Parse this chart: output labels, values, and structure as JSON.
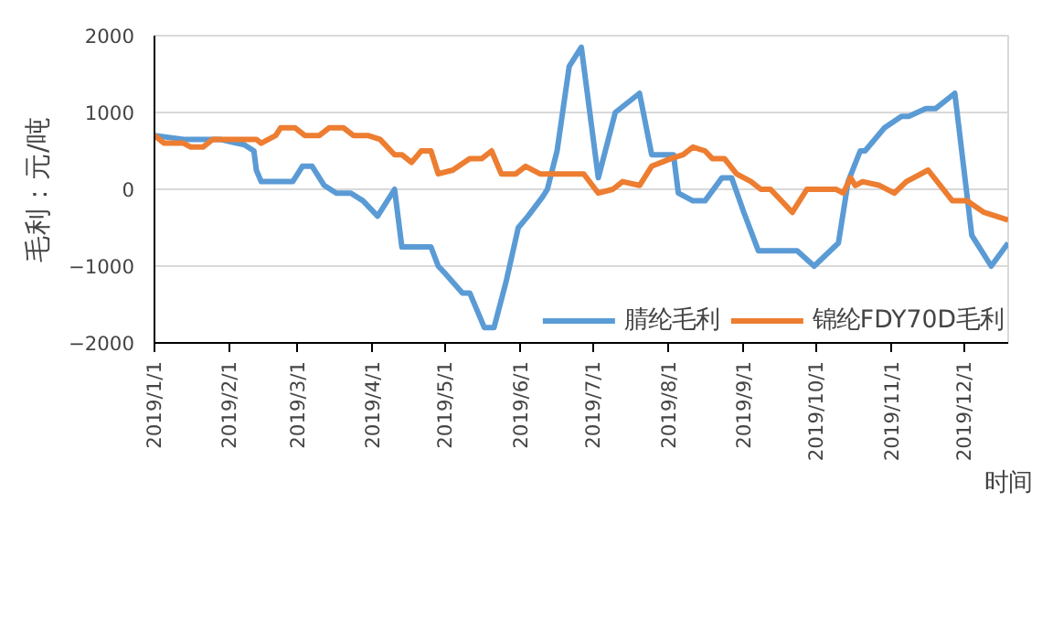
{
  "chart_data": {
    "type": "line",
    "ylabel": "毛利：元/吨",
    "xlabel": "时间",
    "xlim": [
      "2019-01-01",
      "2019-12-19"
    ],
    "xticks": [
      {
        "value": "2019-01-01",
        "label": "2019/1/1"
      },
      {
        "value": "2019-02-01",
        "label": "2019/2/1"
      },
      {
        "value": "2019-03-01",
        "label": "2019/3/1"
      },
      {
        "value": "2019-04-01",
        "label": "2019/4/1"
      },
      {
        "value": "2019-05-01",
        "label": "2019/5/1"
      },
      {
        "value": "2019-06-01",
        "label": "2019/6/1"
      },
      {
        "value": "2019-07-01",
        "label": "2019/7/1"
      },
      {
        "value": "2019-08-01",
        "label": "2019/8/1"
      },
      {
        "value": "2019-09-01",
        "label": "2019/9/1"
      },
      {
        "value": "2019-10-01",
        "label": "2019/10/1"
      },
      {
        "value": "2019-11-01",
        "label": "2019/11/1"
      },
      {
        "value": "2019-12-01",
        "label": "2019/12/1"
      }
    ],
    "ylim": [
      -2000,
      2000
    ],
    "yticks": [
      -2000,
      -1000,
      0,
      1000,
      2000
    ],
    "grid": "y",
    "legend": "bottom",
    "marker": "none",
    "line_style": "solid",
    "series": [
      {
        "name": "腈纶毛利",
        "color": "#5b9bd5",
        "x": [
          "2019-01-01",
          "2019-01-13",
          "2019-01-28",
          "2019-02-07",
          "2019-02-11",
          "2019-02-12",
          "2019-02-14",
          "2019-02-27",
          "2019-03-03",
          "2019-03-07",
          "2019-03-12",
          "2019-03-17",
          "2019-03-23",
          "2019-03-28",
          "2019-04-03",
          "2019-04-10",
          "2019-04-13",
          "2019-04-25",
          "2019-04-28",
          "2019-05-01",
          "2019-05-08",
          "2019-05-11",
          "2019-05-17",
          "2019-05-21",
          "2019-05-26",
          "2019-05-31",
          "2019-06-04",
          "2019-06-10",
          "2019-06-12",
          "2019-06-16",
          "2019-06-21",
          "2019-06-26",
          "2019-07-03",
          "2019-07-10",
          "2019-07-20",
          "2019-07-25",
          "2019-08-03",
          "2019-08-05",
          "2019-08-11",
          "2019-08-16",
          "2019-08-23",
          "2019-08-27",
          "2019-09-01",
          "2019-09-07",
          "2019-09-23",
          "2019-09-30",
          "2019-10-10",
          "2019-10-14",
          "2019-10-19",
          "2019-10-21",
          "2019-10-29",
          "2019-11-05",
          "2019-11-08",
          "2019-11-15",
          "2019-11-19",
          "2019-11-27",
          "2019-12-04",
          "2019-12-12",
          "2019-12-19"
        ],
        "values": [
          700,
          650,
          650,
          580,
          500,
          250,
          100,
          100,
          300,
          300,
          50,
          -50,
          -50,
          -150,
          -350,
          0,
          -750,
          -750,
          -1000,
          -1100,
          -1350,
          -1350,
          -1800,
          -1800,
          -1200,
          -500,
          -350,
          -100,
          0,
          500,
          1600,
          1850,
          150,
          1000,
          1250,
          450,
          450,
          -50,
          -150,
          -150,
          150,
          150,
          -300,
          -800,
          -800,
          -1000,
          -700,
          100,
          500,
          500,
          800,
          950,
          950,
          1050,
          1050,
          1250,
          -600,
          -1000,
          -700
        ]
      },
      {
        "name": "锦纶FDY70D毛利",
        "color": "#ed7d31",
        "x": [
          "2019-01-01",
          "2019-01-05",
          "2019-01-13",
          "2019-01-16",
          "2019-01-21",
          "2019-01-25",
          "2019-02-12",
          "2019-02-14",
          "2019-02-20",
          "2019-02-22",
          "2019-02-28",
          "2019-03-04",
          "2019-03-10",
          "2019-03-14",
          "2019-03-20",
          "2019-03-24",
          "2019-03-30",
          "2019-04-04",
          "2019-04-10",
          "2019-04-13",
          "2019-04-17",
          "2019-04-21",
          "2019-04-25",
          "2019-04-28",
          "2019-05-04",
          "2019-05-11",
          "2019-05-16",
          "2019-05-20",
          "2019-05-24",
          "2019-05-30",
          "2019-06-03",
          "2019-06-09",
          "2019-06-27",
          "2019-07-03",
          "2019-07-09",
          "2019-07-13",
          "2019-07-20",
          "2019-07-25",
          "2019-08-02",
          "2019-08-07",
          "2019-08-11",
          "2019-08-16",
          "2019-08-19",
          "2019-08-24",
          "2019-08-29",
          "2019-09-04",
          "2019-09-08",
          "2019-09-12",
          "2019-09-18",
          "2019-09-21",
          "2019-09-27",
          "2019-10-09",
          "2019-10-12",
          "2019-10-15",
          "2019-10-17",
          "2019-10-20",
          "2019-10-27",
          "2019-11-02",
          "2019-11-07",
          "2019-11-16",
          "2019-11-26",
          "2019-12-02",
          "2019-12-09",
          "2019-12-19"
        ],
        "values": [
          700,
          600,
          600,
          550,
          550,
          650,
          650,
          600,
          700,
          800,
          800,
          700,
          700,
          800,
          800,
          700,
          700,
          650,
          450,
          450,
          350,
          500,
          500,
          200,
          250,
          400,
          400,
          500,
          200,
          200,
          300,
          200,
          200,
          -50,
          0,
          100,
          50,
          300,
          400,
          450,
          550,
          500,
          400,
          400,
          200,
          100,
          0,
          0,
          -200,
          -300,
          0,
          0,
          -50,
          150,
          50,
          100,
          50,
          -50,
          100,
          250,
          -150,
          -150,
          -300,
          -400
        ]
      }
    ]
  }
}
